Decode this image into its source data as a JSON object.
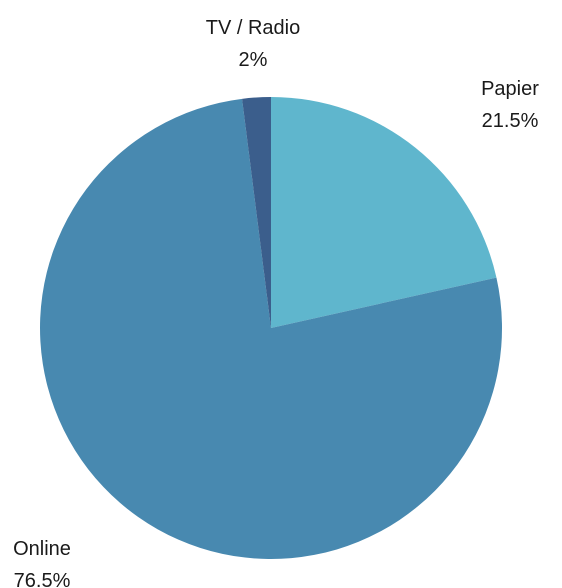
{
  "chart_data": {
    "type": "pie",
    "title": "",
    "slices": [
      {
        "label": "Papier",
        "value": 21.5,
        "value_label": "21.5%",
        "color": "#5fb6cd"
      },
      {
        "label": "Online",
        "value": 76.5,
        "value_label": "76.5%",
        "color": "#4889b0"
      },
      {
        "label": "TV / Radio",
        "value": 2,
        "value_label": "2%",
        "color": "#3b5e8c"
      }
    ],
    "start_angle": "12 o'clock",
    "direction": "clockwise",
    "legend": "none"
  }
}
